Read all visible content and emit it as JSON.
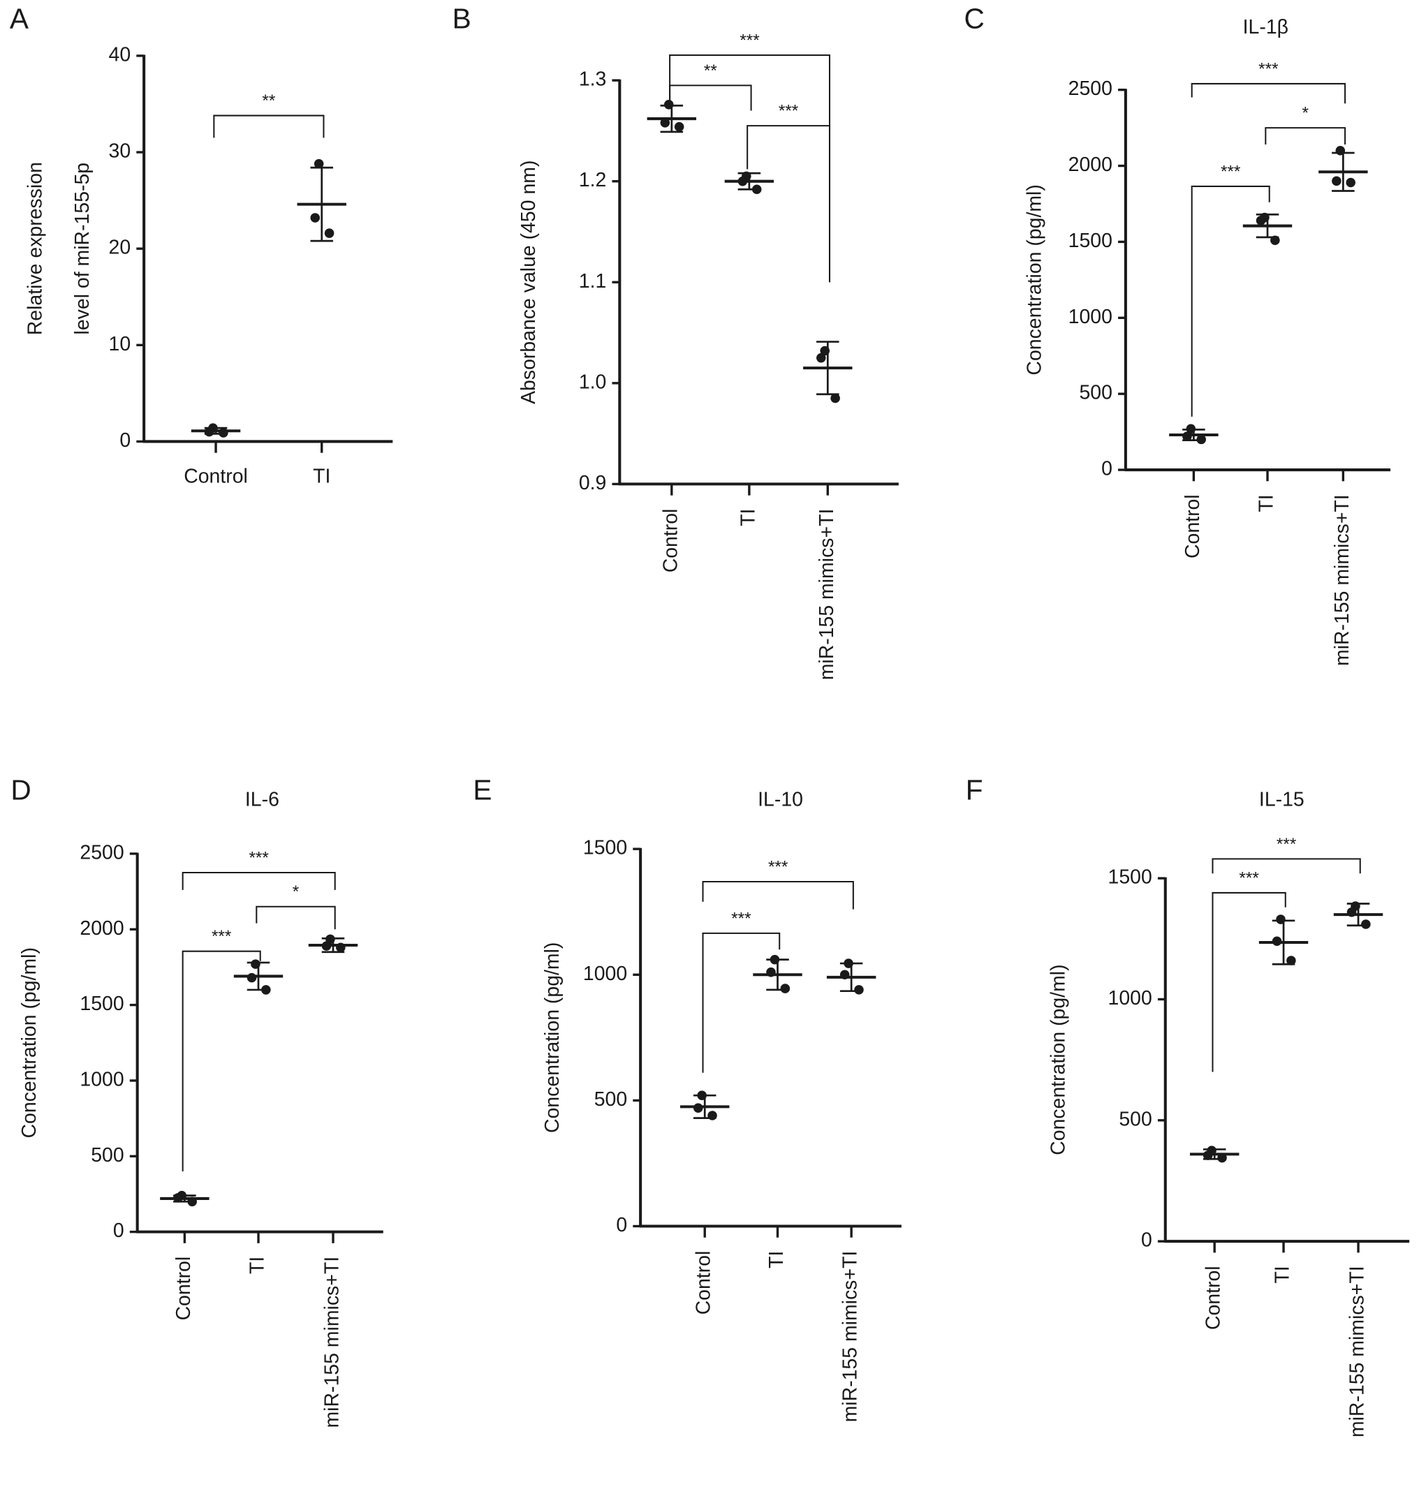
{
  "chart_data": [
    {
      "panel": "A",
      "type": "scatter",
      "title": "",
      "ylabel": [
        "Relative expression",
        "level of miR-155-5p"
      ],
      "categories": [
        "Control",
        "TI"
      ],
      "ylim": [
        0,
        40
      ],
      "yticks": [
        "0",
        "10",
        "20",
        "30",
        "40"
      ],
      "groups": [
        {
          "points": [
            1.4,
            1.0,
            0.9
          ],
          "mean": 1.1,
          "sd": 0.3
        },
        {
          "points": [
            28.8,
            23.2,
            21.6
          ],
          "mean": 24.6,
          "sd": 3.8
        }
      ],
      "comparisons": [
        {
          "from": 0,
          "to": 1,
          "label": "**",
          "y": 33.8,
          "left_end": 31.5,
          "right_end": 31.5
        }
      ],
      "color": "#1a1a1a"
    },
    {
      "panel": "B",
      "type": "scatter",
      "title": "",
      "ylabel": [
        "Absorbance value (450 nm)"
      ],
      "categories": [
        "Control",
        "TI",
        "miR-155 mimics+TI"
      ],
      "ylim": [
        0.9,
        1.3
      ],
      "yticks": [
        "0.9",
        "1.0",
        "1.1",
        "1.2",
        "1.3"
      ],
      "groups": [
        {
          "points": [
            1.276,
            1.258,
            1.254
          ],
          "mean": 1.262,
          "sd": 0.013
        },
        {
          "points": [
            1.205,
            1.2,
            1.192
          ],
          "mean": 1.2,
          "sd": 0.008
        },
        {
          "points": [
            1.032,
            1.025,
            0.985
          ],
          "mean": 1.015,
          "sd": 0.026
        }
      ],
      "comparisons": [
        {
          "from": 0,
          "to": 2,
          "label": "***",
          "y": 1.325,
          "left_end": 1.277,
          "right_end": 1.1
        },
        {
          "from": 0,
          "to": 1,
          "label": "**",
          "y": 1.295,
          "left_end": 1.278,
          "right_end": 1.27
        },
        {
          "from": 1,
          "to": 2,
          "label": "***",
          "y": 1.255,
          "left_end": 1.212,
          "right_end": 1.1
        }
      ],
      "color": "#1a1a1a"
    },
    {
      "panel": "C",
      "type": "scatter",
      "title": "IL-1β",
      "ylabel": [
        "Concentration (pg/ml)"
      ],
      "categories": [
        "Control",
        "TI",
        "miR-155 mimics+TI"
      ],
      "ylim": [
        0,
        2500
      ],
      "yticks": [
        "0",
        "500",
        "1000",
        "1500",
        "2000",
        "2500"
      ],
      "groups": [
        {
          "points": [
            270,
            220,
            200
          ],
          "mean": 230,
          "sd": 35
        },
        {
          "points": [
            1660,
            1640,
            1510
          ],
          "mean": 1605,
          "sd": 75
        },
        {
          "points": [
            2100,
            1900,
            1890
          ],
          "mean": 1960,
          "sd": 125
        }
      ],
      "comparisons": [
        {
          "from": 0,
          "to": 2,
          "label": "***",
          "y": 2540,
          "left_end": 2450,
          "right_end": 2410
        },
        {
          "from": 1,
          "to": 2,
          "label": "*",
          "y": 2250,
          "left_end": 2140,
          "right_end": 2140
        },
        {
          "from": 0,
          "to": 1,
          "label": "***",
          "y": 1865,
          "left_end": 350,
          "right_end": 1760
        }
      ],
      "color": "#1a1a1a"
    },
    {
      "panel": "D",
      "type": "scatter",
      "title": "IL-6",
      "ylabel": [
        "Concentration (pg/ml)"
      ],
      "categories": [
        "Control",
        "TI",
        "miR-155 mimics+TI"
      ],
      "ylim": [
        0,
        2500
      ],
      "yticks": [
        "0",
        "500",
        "1000",
        "1500",
        "2000",
        "2500"
      ],
      "groups": [
        {
          "points": [
            240,
            225,
            200
          ],
          "mean": 220,
          "sd": 20
        },
        {
          "points": [
            1770,
            1680,
            1600
          ],
          "mean": 1690,
          "sd": 90
        },
        {
          "points": [
            1935,
            1890,
            1880
          ],
          "mean": 1895,
          "sd": 45
        }
      ],
      "comparisons": [
        {
          "from": 0,
          "to": 2,
          "label": "***",
          "y": 2375,
          "left_end": 2260,
          "right_end": 2260
        },
        {
          "from": 1,
          "to": 2,
          "label": "*",
          "y": 2150,
          "left_end": 2040,
          "right_end": 2000
        },
        {
          "from": 0,
          "to": 1,
          "label": "***",
          "y": 1855,
          "left_end": 400,
          "right_end": 1790
        }
      ],
      "color": "#1a1a1a"
    },
    {
      "panel": "E",
      "type": "scatter",
      "title": "IL-10",
      "ylabel": [
        "Concentration (pg/ml)"
      ],
      "categories": [
        "Control",
        "TI",
        "miR-155 mimics+TI"
      ],
      "ylim": [
        0,
        1500
      ],
      "yticks": [
        "0",
        "500",
        "1000",
        "1500"
      ],
      "groups": [
        {
          "points": [
            520,
            470,
            440
          ],
          "mean": 475,
          "sd": 45
        },
        {
          "points": [
            1060,
            1010,
            945
          ],
          "mean": 1000,
          "sd": 60
        },
        {
          "points": [
            1045,
            1000,
            940
          ],
          "mean": 990,
          "sd": 55
        }
      ],
      "comparisons": [
        {
          "from": 0,
          "to": 2,
          "label": "***",
          "y": 1370,
          "left_end": 1290,
          "right_end": 1260
        },
        {
          "from": 0,
          "to": 1,
          "label": "***",
          "y": 1165,
          "left_end": 610,
          "right_end": 1100
        }
      ],
      "color": "#1a1a1a"
    },
    {
      "panel": "F",
      "type": "scatter",
      "title": "IL-15",
      "ylabel": [
        "Concentration (pg/ml)"
      ],
      "categories": [
        "Control",
        "TI",
        "miR-155 mimics+TI"
      ],
      "ylim": [
        0,
        1500
      ],
      "yticks": [
        "0",
        "500",
        "1000",
        "1500"
      ],
      "groups": [
        {
          "points": [
            375,
            355,
            345
          ],
          "mean": 360,
          "sd": 20
        },
        {
          "points": [
            1330,
            1240,
            1160
          ],
          "mean": 1235,
          "sd": 90
        },
        {
          "points": [
            1385,
            1360,
            1310
          ],
          "mean": 1350,
          "sd": 45
        }
      ],
      "comparisons": [
        {
          "from": 0,
          "to": 2,
          "label": "***",
          "y": 1580,
          "left_end": 1520,
          "right_end": 1520
        },
        {
          "from": 0,
          "to": 1,
          "label": "***",
          "y": 1440,
          "left_end": 700,
          "right_end": 1380
        }
      ],
      "color": "#1a1a1a"
    }
  ]
}
